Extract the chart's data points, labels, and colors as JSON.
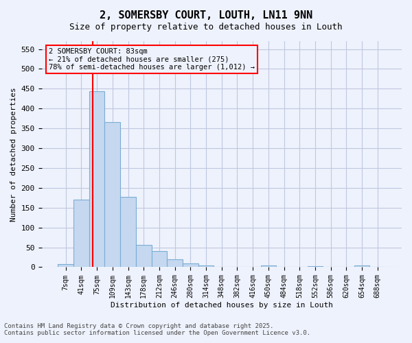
{
  "title": "2, SOMERSBY COURT, LOUTH, LN11 9NN",
  "subtitle": "Size of property relative to detached houses in Louth",
  "xlabel": "Distribution of detached houses by size in Louth",
  "ylabel": "Number of detached properties",
  "footer1": "Contains HM Land Registry data © Crown copyright and database right 2025.",
  "footer2": "Contains public sector information licensed under the Open Government Licence v3.0.",
  "bins": [
    "7sqm",
    "41sqm",
    "75sqm",
    "109sqm",
    "143sqm",
    "178sqm",
    "212sqm",
    "246sqm",
    "280sqm",
    "314sqm",
    "348sqm",
    "382sqm",
    "416sqm",
    "450sqm",
    "484sqm",
    "518sqm",
    "552sqm",
    "586sqm",
    "620sqm",
    "654sqm",
    "688sqm"
  ],
  "bar_values": [
    8,
    170,
    443,
    365,
    178,
    57,
    40,
    20,
    10,
    5,
    0,
    0,
    0,
    4,
    0,
    0,
    3,
    0,
    0,
    4,
    0
  ],
  "bar_color": "#c5d8f0",
  "bar_edge_color": "#7aadd4",
  "ylim": [
    0,
    570
  ],
  "yticks": [
    0,
    50,
    100,
    150,
    200,
    250,
    300,
    350,
    400,
    450,
    500,
    550
  ],
  "red_line_bin_index": 2,
  "annotation_text": "2 SOMERSBY COURT: 83sqm\n← 21% of detached houses are smaller (275)\n78% of semi-detached houses are larger (1,012) →",
  "background_color": "#eef2fc",
  "grid_color": "#c0c8e0"
}
